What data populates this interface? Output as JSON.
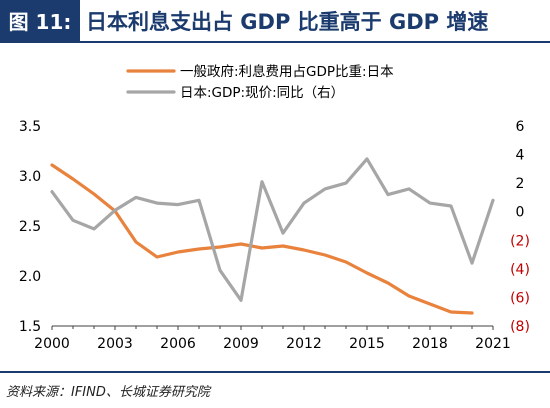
{
  "figure": {
    "tag": "图 11:",
    "title": "日本利息支出占 GDP 比重高于 GDP 增速",
    "source": "资料来源：IFIND、长城证券研究院"
  },
  "colors": {
    "series_orange": "#e8823c",
    "series_gray": "#a6a6a6",
    "negative_tick": "#c00000",
    "title_blue": "#1b3b6f"
  },
  "chart_data": {
    "type": "line",
    "legend_placement": "top",
    "grid": false,
    "x_ticks": [
      2000,
      2003,
      2006,
      2009,
      2012,
      2015,
      2018,
      2021
    ],
    "x_range": [
      2000,
      2021
    ],
    "y_left": {
      "range": [
        1.5,
        3.5
      ],
      "ticks": [
        "1.5",
        "2.0",
        "2.5",
        "3.0",
        "3.5"
      ]
    },
    "y_right": {
      "range": [
        -8,
        6
      ],
      "ticks": [
        {
          "value": 6,
          "label": "6"
        },
        {
          "value": 4,
          "label": "4"
        },
        {
          "value": 2,
          "label": "2"
        },
        {
          "value": 0,
          "label": "0"
        },
        {
          "value": -2,
          "label": "(2)"
        },
        {
          "value": -4,
          "label": "(4)"
        },
        {
          "value": -6,
          "label": "(6)"
        },
        {
          "value": -8,
          "label": "(8)"
        }
      ]
    },
    "series": [
      {
        "name": "一般政府:利息费用占GDP比重:日本",
        "axis": "left",
        "color": "#e8823c",
        "x": [
          2000,
          2001,
          2002,
          2003,
          2004,
          2005,
          2006,
          2007,
          2008,
          2009,
          2010,
          2011,
          2012,
          2013,
          2014,
          2015,
          2016,
          2017,
          2018,
          2019,
          2020
        ],
        "y": [
          3.11,
          2.97,
          2.82,
          2.65,
          2.34,
          2.19,
          2.24,
          2.27,
          2.29,
          2.32,
          2.28,
          2.3,
          2.26,
          2.21,
          2.14,
          2.03,
          1.93,
          1.8,
          1.72,
          1.64,
          1.63
        ]
      },
      {
        "name": "日本:GDP:现价:同比（右）",
        "axis": "right",
        "color": "#a6a6a6",
        "x": [
          2000,
          2001,
          2002,
          2003,
          2004,
          2005,
          2006,
          2007,
          2008,
          2009,
          2010,
          2011,
          2012,
          2013,
          2014,
          2015,
          2016,
          2017,
          2018,
          2019,
          2020,
          2021
        ],
        "y": [
          1.4,
          -0.6,
          -1.2,
          0.1,
          1.0,
          0.6,
          0.5,
          0.8,
          -4.1,
          -6.2,
          2.1,
          -1.5,
          0.6,
          1.6,
          2.0,
          3.7,
          1.2,
          1.6,
          0.6,
          0.4,
          -3.6,
          0.8
        ]
      }
    ]
  }
}
